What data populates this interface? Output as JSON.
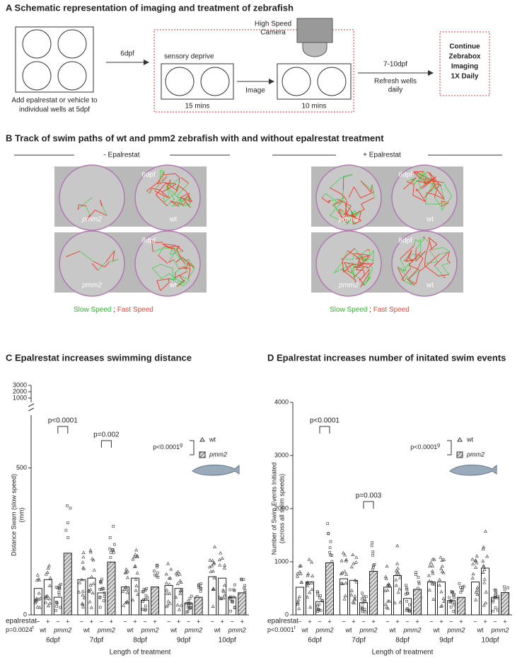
{
  "panel_a": {
    "title": "A  Schematic representation of imaging and treatment of zebrafish",
    "step1_lines": [
      "Add epalrestat or vehicle to",
      "individual wells at 5dpf"
    ],
    "arrow1": "6dpf",
    "sensory": "sensory deprive",
    "camera_lines": [
      "High Speed",
      "Camera"
    ],
    "image": "Image",
    "time1": "15 mins",
    "time2": "10 mins",
    "arrow2": "7-10dpf",
    "refresh_lines": [
      "Refresh wells",
      "daily"
    ],
    "final_lines": [
      "Continue",
      "Zebrabox",
      "Imaging",
      "1X Daily"
    ]
  },
  "panel_b": {
    "title": "B  Track of swim paths of wt and pmm2 zebrafish with and without epalrestat treatment",
    "left_header": "- Epalrestat",
    "right_header": "+ Epalrestat",
    "days": [
      "6dpf",
      "8dpf"
    ],
    "mutant": "pmm2",
    "wildtype": "wt",
    "slow": "Slow Speed",
    "sep": " ; ",
    "fast": "Fast Speed"
  },
  "chart_data": [
    {
      "type": "bar",
      "title": "C  Epalrestat increases swimming distance",
      "ylabel_lines": [
        "Distance Swam (slow speed)",
        "(mm)"
      ],
      "categories": [
        "6dpf",
        "7dpf",
        "8dpf",
        "9dpf",
        "10dpf"
      ],
      "series": [
        {
          "values": [
            90,
            120,
            95,
            100,
            130
          ],
          "hatch": false
        },
        {
          "values": [
            120,
            125,
            125,
            90,
            125
          ],
          "hatch": false
        },
        {
          "values": [
            60,
            75,
            50,
            40,
            60
          ],
          "hatch": false
        },
        {
          "values": [
            210,
            180,
            95,
            60,
            75
          ],
          "hatch": true
        }
      ],
      "ylim": [
        0,
        680
      ],
      "yticks": [
        0,
        500
      ],
      "upper_ylim": [
        1000,
        3000
      ],
      "upper_yticks": [
        1000,
        2000,
        3000
      ],
      "treatment_label": "epalrestat",
      "treatment_labels": [
        "−",
        "+",
        "−",
        "+"
      ],
      "genotype_labels": [
        "wt",
        "pmm2"
      ],
      "xlabel": "Length of treatment",
      "stat_note": "p=0.0024",
      "stat_note_sup": "t",
      "legend_p": "p<0.0001",
      "legend_p_sup": "g",
      "legend": [
        "wt",
        "pmm2"
      ],
      "annotations": [
        "p<0.0001",
        "p=0.002"
      ]
    },
    {
      "type": "bar",
      "title": "D  Epalrestat increases number of initated swim events",
      "ylabel_lines": [
        "Number of Swim Events Initiated",
        "(across all swim speeds)"
      ],
      "categories": [
        "6dpf",
        "7dpf",
        "8dpf",
        "9dpf",
        "10dpf"
      ],
      "series": [
        {
          "values": [
            520,
            680,
            520,
            620,
            620
          ],
          "hatch": false
        },
        {
          "values": [
            620,
            650,
            740,
            620,
            880
          ],
          "hatch": false
        },
        {
          "values": [
            250,
            230,
            310,
            270,
            330
          ],
          "hatch": false
        },
        {
          "values": [
            980,
            820,
            480,
            330,
            420
          ],
          "hatch": true
        }
      ],
      "ylim": [
        0,
        4000
      ],
      "yticks": [
        0,
        1000,
        2000,
        3000,
        4000
      ],
      "treatment_label": "epalrestat",
      "treatment_labels": [
        "−",
        "+",
        "−",
        "+"
      ],
      "genotype_labels": [
        "wt",
        "pmm2"
      ],
      "xlabel": "Length of treatment",
      "stat_note": "p<0.0001",
      "stat_note_sup": "t",
      "legend_p": "p<0.0001",
      "legend_p_sup": "g",
      "legend": [
        "wt",
        "pmm2"
      ],
      "annotations": [
        "p<0.0001",
        "p=0.003"
      ]
    }
  ]
}
